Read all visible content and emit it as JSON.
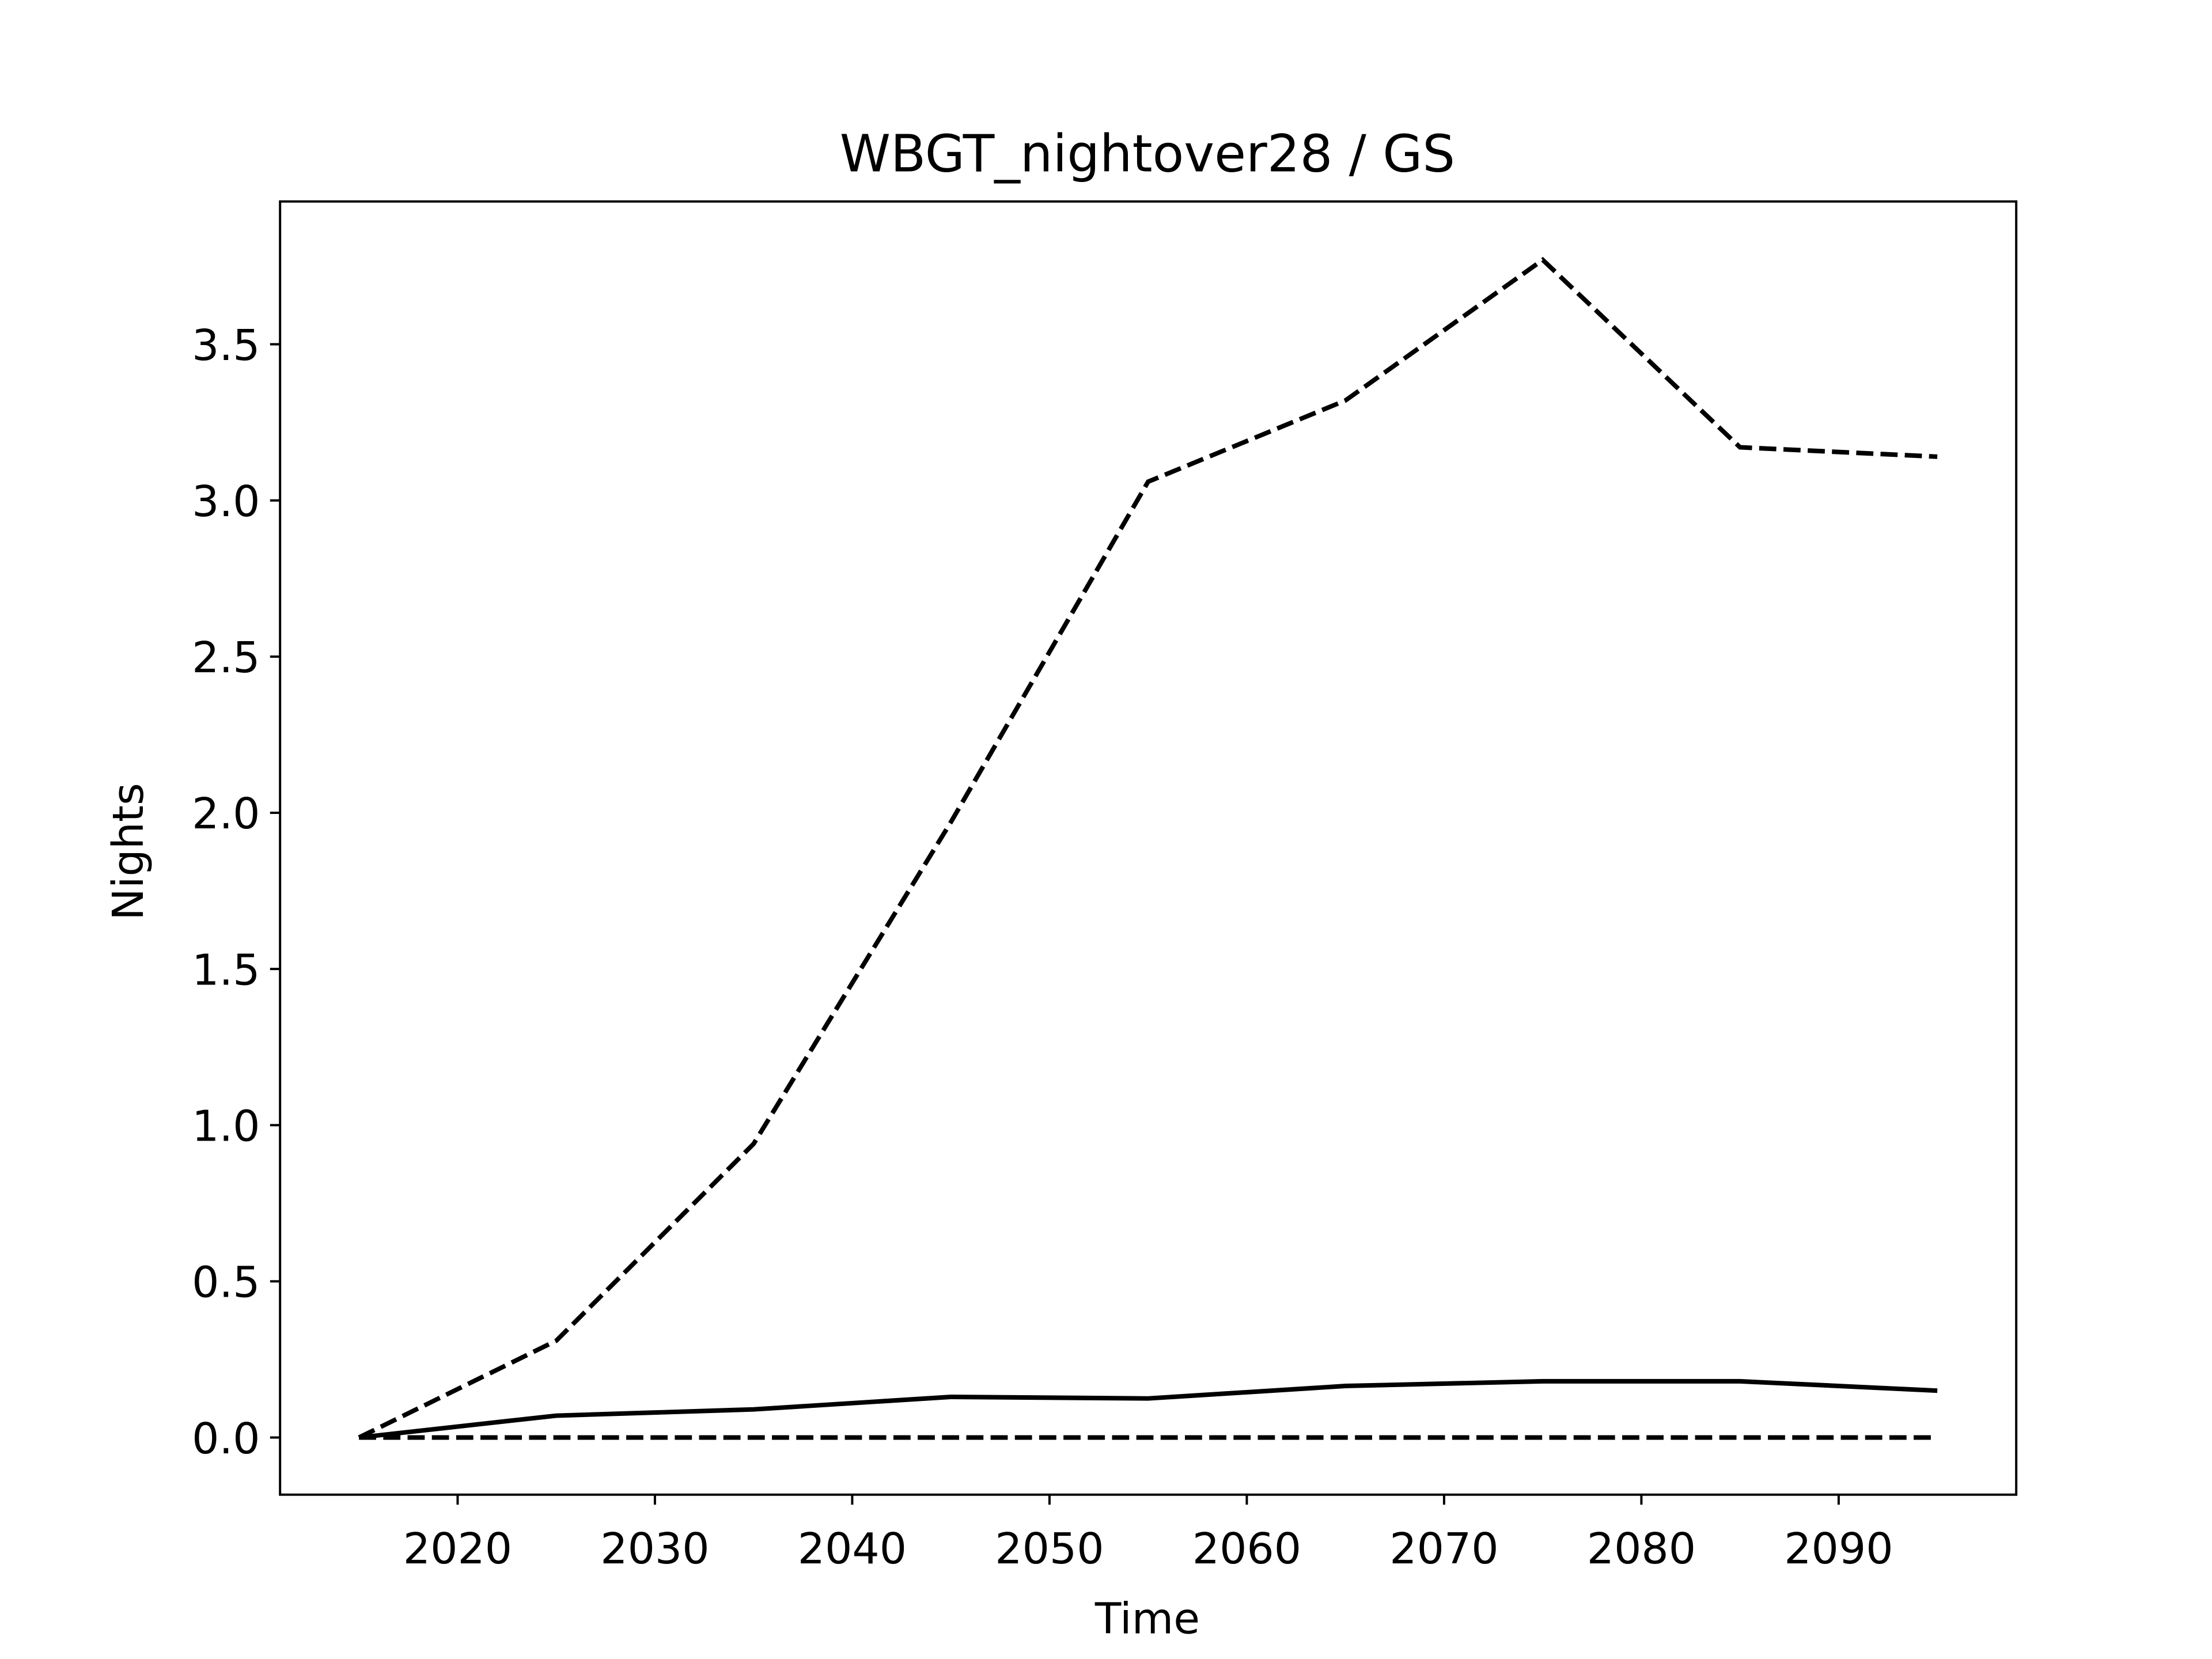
{
  "chart_data": {
    "type": "line",
    "title": "WBGT_nightover28 / GS",
    "xlabel": "Time",
    "ylabel": "Nights",
    "x": [
      2015,
      2025,
      2035,
      2045,
      2055,
      2065,
      2075,
      2085,
      2095
    ],
    "series": [
      {
        "color": "#000000",
        "linestyle": "dashed",
        "values": [
          0,
          0.31,
          0.94,
          1.97,
          3.06,
          3.32,
          3.77,
          3.17,
          3.14
        ]
      },
      {
        "color": "#000000",
        "linestyle": "solid",
        "values": [
          0,
          0.07,
          0.09,
          0.13,
          0.125,
          0.165,
          0.18,
          0.18,
          0.15
        ]
      },
      {
        "color": "#000000",
        "linestyle": "dashed",
        "values": [
          0,
          0,
          0,
          0,
          0,
          0,
          0,
          0,
          0
        ]
      }
    ],
    "xlim": [
      2011,
      2099
    ],
    "xticks": [
      2020,
      2030,
      2040,
      2050,
      2060,
      2070,
      2080,
      2090
    ],
    "ylim": [
      -0.183,
      3.957
    ],
    "yticks": [
      {
        "value": 0,
        "label": "0.0"
      },
      0.5,
      {
        "value": 1,
        "label": "1.0"
      },
      1.5,
      {
        "value": 2,
        "label": "2.0"
      },
      2.5,
      {
        "value": 3,
        "label": "3.0"
      },
      3.5
    ],
    "grid": false
  }
}
